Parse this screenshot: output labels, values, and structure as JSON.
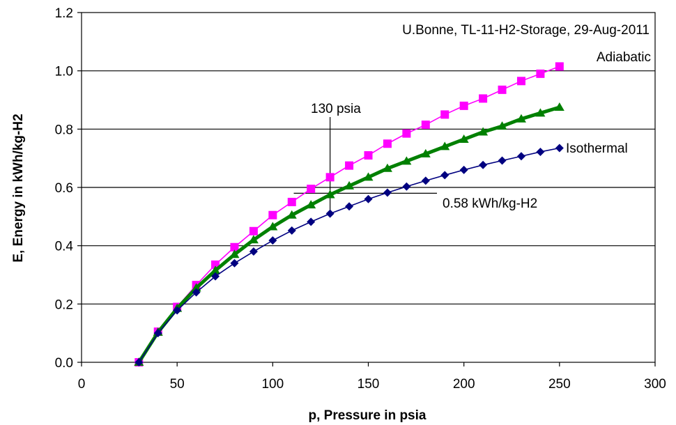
{
  "chart_data": {
    "type": "line",
    "title": "",
    "credit": "U.Bonne, TL-11-H2-Storage, 29-Aug-2011",
    "xlabel": "p, Pressure in psia",
    "ylabel": "E, Energy in kWh/kg-H2",
    "xlim": [
      0,
      300
    ],
    "ylim": [
      0,
      1.2
    ],
    "x_ticks": [
      0,
      50,
      100,
      150,
      200,
      250,
      300
    ],
    "y_ticks": [
      "0.0",
      "0.2",
      "0.4",
      "0.6",
      "0.8",
      "1.0",
      "1.2"
    ],
    "grid": "horizontal",
    "x": [
      30,
      40,
      50,
      60,
      70,
      80,
      90,
      100,
      110,
      120,
      130,
      140,
      150,
      160,
      170,
      180,
      190,
      200,
      210,
      220,
      230,
      240,
      250
    ],
    "series": [
      {
        "name": "Adiabatic",
        "color": "#FF00FF",
        "marker": "square",
        "values": [
          0.0,
          0.105,
          0.19,
          0.265,
          0.335,
          0.395,
          0.45,
          0.505,
          0.55,
          0.595,
          0.635,
          0.675,
          0.71,
          0.75,
          0.785,
          0.815,
          0.85,
          0.88,
          0.905,
          0.935,
          0.965,
          0.99,
          1.015
        ]
      },
      {
        "name": "",
        "color": "#008000",
        "marker": "triangle",
        "values": [
          0.0,
          0.103,
          0.185,
          0.255,
          0.315,
          0.37,
          0.42,
          0.465,
          0.505,
          0.54,
          0.575,
          0.605,
          0.635,
          0.665,
          0.69,
          0.715,
          0.74,
          0.765,
          0.79,
          0.81,
          0.835,
          0.855,
          0.875
        ]
      },
      {
        "name": "Isothermal",
        "color": "#000080",
        "marker": "diamond",
        "values": [
          0.0,
          0.1,
          0.178,
          0.24,
          0.295,
          0.34,
          0.38,
          0.418,
          0.452,
          0.482,
          0.51,
          0.535,
          0.56,
          0.582,
          0.603,
          0.623,
          0.642,
          0.66,
          0.677,
          0.692,
          0.707,
          0.722,
          0.735
        ]
      }
    ],
    "annotations": {
      "psia_text": "130 psia",
      "psia_x": 130,
      "energy_text": "0.58 kWh/kg-H2",
      "energy_y": 0.58
    }
  }
}
